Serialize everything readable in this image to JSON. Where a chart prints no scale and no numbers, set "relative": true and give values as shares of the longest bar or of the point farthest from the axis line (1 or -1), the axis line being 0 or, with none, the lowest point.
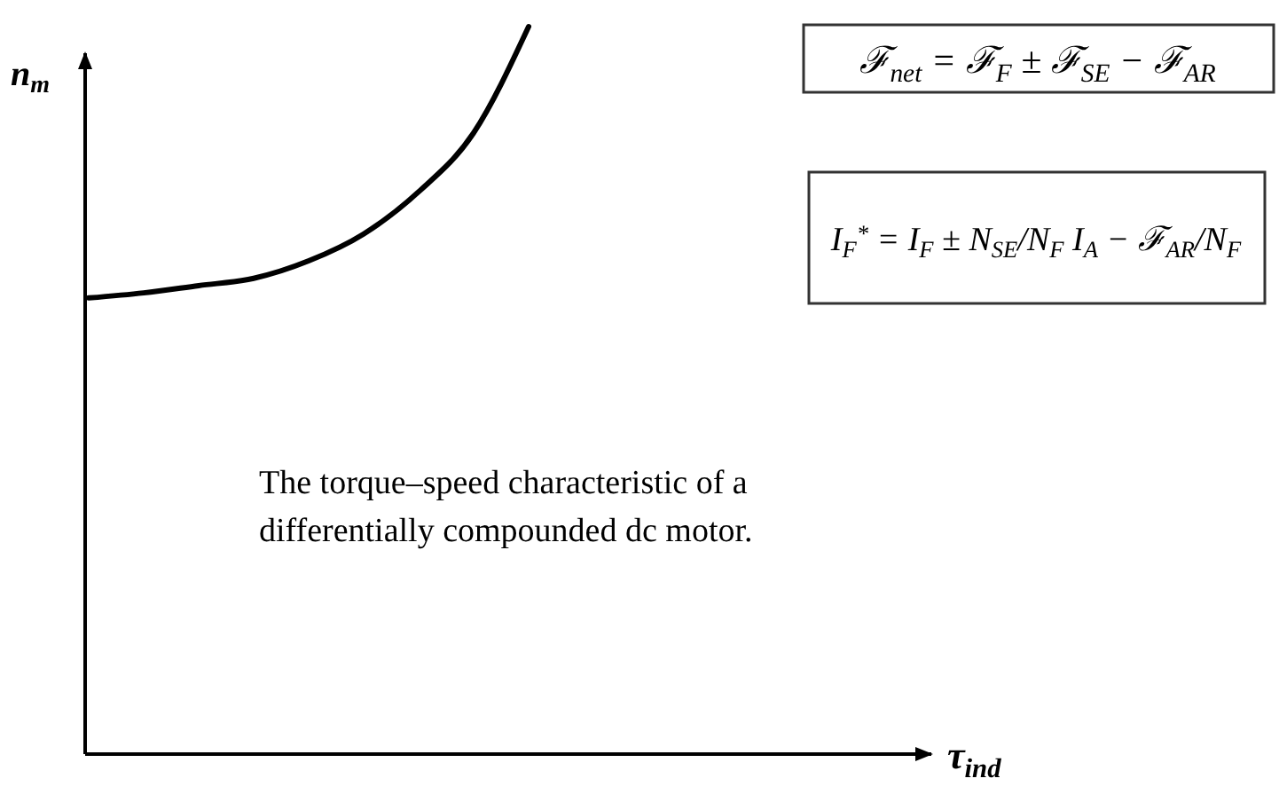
{
  "chart_data": {
    "type": "line",
    "relative": true,
    "xlabel": "τ$_{ind}$",
    "ylabel": "n$_{m}$",
    "categories": [
      null,
      null,
      null,
      null,
      null,
      null,
      null,
      null,
      null,
      null,
      null,
      null,
      null,
      null,
      null,
      null
    ],
    "series": [
      {
        "color": "#000000",
        "values": [
          0.627,
          0.634,
          0.644,
          0.654,
          0.678,
          0.715,
          0.773,
          0.854,
          1,
          null,
          null,
          null,
          null,
          null,
          null,
          null
        ]
      }
    ],
    "marker": "none",
    "line_style": "solid",
    "annotations": [
      "ℱ$_{net}$ = ℱ$_{F}$ ± ℱ$_{SE}$ − ℱ$_{AR}$",
      "I$_{F}$$^{*}$ = I$_{F}$ ± N$_{SE}$/N$_{F}$ I$_{A}$ − ℱ$_{AR}$/N$_{F}$",
      "The torque–speed characteristic of a differentially compounded dc motor."
    ]
  }
}
